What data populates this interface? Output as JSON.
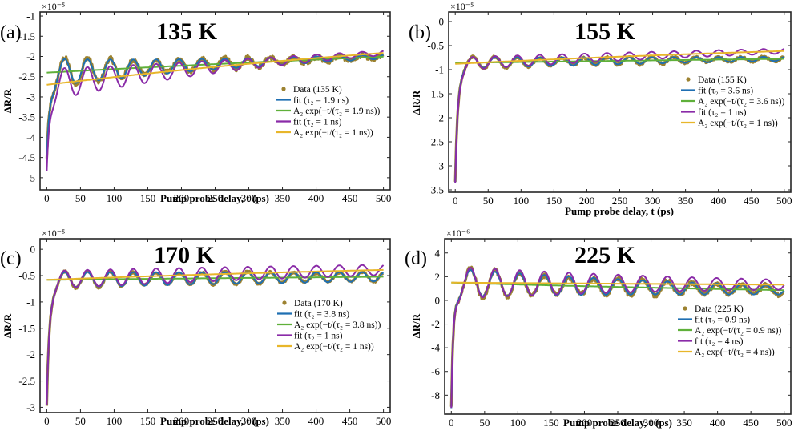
{
  "figure": {
    "xlabel": "Pump probe delay, t (ps)",
    "ylabel": "ΔR/R"
  },
  "colors": {
    "data": "#9C8230",
    "fit_fast": "#1F6FB2",
    "exp_fast": "#5FB03A",
    "fit_slow": "#8A2BA8",
    "exp_slow": "#E8B62A"
  },
  "chart_data": [
    {
      "type": "line",
      "panel_label": "(a)",
      "title": "135 K",
      "exponent_label": "×10⁻⁵",
      "xlim": [
        -10,
        510
      ],
      "ylim": [
        -5.3,
        -0.9
      ],
      "xticks": [
        0,
        50,
        100,
        150,
        200,
        250,
        300,
        350,
        400,
        450,
        500
      ],
      "xtick_labels": [
        "0",
        "50",
        "100",
        "150",
        "200",
        "250",
        "300",
        "350",
        "400",
        "450",
        "500"
      ],
      "yticks": [
        -5,
        -4.5,
        -4,
        -3.5,
        -3,
        -2.5,
        -2,
        -1.5,
        -1
      ],
      "ytick_labels": [
        "-5",
        "-4.5",
        "-4",
        "-3.5",
        "-3",
        "-2.5",
        "-2",
        "-1.5",
        "-1"
      ],
      "model": {
        "offset": -0.7,
        "amp_fast": -1.7,
        "tau_fast_ps": 1900,
        "amp_slow": -2.0,
        "tau_slow_ps": 1000,
        "osc_amp": 0.35,
        "osc_damp_ps": 260,
        "period_ps": 34,
        "phase": 1.4,
        "drop": -2.2,
        "rise_ps": 4,
        "noise": 0.06
      },
      "legend": [
        {
          "label": "Data (135 K)",
          "series": "data"
        },
        {
          "label": "fit (τ₂ = 1.9 ns)",
          "series": "fit_fast"
        },
        {
          "label": "A₂ exp(−t/(τ₂ = 1.9 ns))",
          "series": "exp_fast"
        },
        {
          "label": "fit (τ₂ = 1 ns)",
          "series": "fit_slow"
        },
        {
          "label": "A₂ exp(−t/(τ₂ = 1 ns))",
          "series": "exp_slow"
        }
      ]
    },
    {
      "type": "line",
      "panel_label": "(b)",
      "title": "155 K",
      "exponent_label": "×10⁻⁵",
      "xlim": [
        -10,
        510
      ],
      "ylim": [
        -3.55,
        0.2
      ],
      "xticks": [
        0,
        50,
        100,
        150,
        200,
        250,
        300,
        350,
        400,
        450,
        500
      ],
      "xtick_labels": [
        "0",
        "50",
        "100",
        "150",
        "200",
        "250",
        "300",
        "350",
        "400",
        "450",
        "500"
      ],
      "yticks": [
        -3.5,
        -3,
        -2.5,
        -2,
        -1.5,
        -1,
        -0.5,
        0
      ],
      "ytick_labels": [
        "-3.5",
        "-3",
        "-2.5",
        "-2",
        "-1.5",
        "-1",
        "-0.5",
        "0"
      ],
      "model": {
        "offset": -0.2,
        "amp_fast": -0.66,
        "tau_fast_ps": 3600,
        "amp_slow": -0.68,
        "tau_slow_ps": 1000,
        "osc_amp": 0.12,
        "osc_damp_ps": 500,
        "period_ps": 34,
        "phase": 1.4,
        "drop": -2.5,
        "rise_ps": 4,
        "noise": 0.025
      },
      "legend": [
        {
          "label": "Data (155 K)",
          "series": "data"
        },
        {
          "label": "fit (τ₂ = 3.6 ns)",
          "series": "fit_fast"
        },
        {
          "label": "A₂ exp(−t/(τ₂ = 3.6 ns))",
          "series": "exp_fast"
        },
        {
          "label": "fit (τ₂ = 1 ns)",
          "series": "fit_slow"
        },
        {
          "label": "A₂ exp(−t/(τ₂ = 1 ns))",
          "series": "exp_slow"
        }
      ]
    },
    {
      "type": "line",
      "panel_label": "(c)",
      "title": "170 K",
      "exponent_label": "×10⁻⁵",
      "xlim": [
        -10,
        510
      ],
      "ylim": [
        -3.1,
        0.2
      ],
      "xticks": [
        0,
        50,
        100,
        150,
        200,
        250,
        300,
        350,
        400,
        450,
        500
      ],
      "xtick_labels": [
        "0",
        "50",
        "100",
        "150",
        "200",
        "250",
        "300",
        "350",
        "400",
        "450",
        "500"
      ],
      "yticks": [
        -3,
        -2.5,
        -2,
        -1.5,
        -1,
        -0.5,
        0
      ],
      "ytick_labels": [
        "-3",
        "-2.5",
        "-2",
        "-1.5",
        "-1",
        "-0.5",
        "0"
      ],
      "model": {
        "offset": -0.1,
        "amp_fast": -0.48,
        "tau_fast_ps": 3800,
        "amp_slow": -0.48,
        "tau_slow_ps": 1000,
        "osc_amp": 0.15,
        "osc_damp_ps": 900,
        "period_ps": 34,
        "phase": 1.4,
        "drop": -2.4,
        "rise_ps": 4,
        "noise": 0.02
      },
      "legend": [
        {
          "label": "Data (170 K)",
          "series": "data"
        },
        {
          "label": "fit (τ₂ = 3.8 ns)",
          "series": "fit_fast"
        },
        {
          "label": "A₂ exp(−t/(τ₂ = 3.8 ns))",
          "series": "exp_fast"
        },
        {
          "label": "fit (τ₂ = 1 ns)",
          "series": "fit_slow"
        },
        {
          "label": "A₂ exp(−t/(τ₂ = 1 ns))",
          "series": "exp_slow"
        }
      ]
    },
    {
      "type": "line",
      "panel_label": "(d)",
      "title": "225 K",
      "exponent_label": "×10⁻⁶",
      "xlim": [
        -10,
        510
      ],
      "ylim": [
        -9.6,
        5.2
      ],
      "xticks": [
        0,
        50,
        100,
        150,
        200,
        250,
        300,
        350,
        400,
        450,
        500
      ],
      "xtick_labels": [
        "0",
        "50",
        "100",
        "150",
        "200",
        "250",
        "300",
        "350",
        "400",
        "450",
        "500"
      ],
      "yticks": [
        -8,
        -6,
        -4,
        -2,
        0,
        2,
        4
      ],
      "ytick_labels": [
        "-8",
        "-6",
        "-4",
        "-2",
        "0",
        "2",
        "4"
      ],
      "model": {
        "offset": 0.0,
        "amp_fast": 1.5,
        "tau_fast_ps": 900,
        "amp_slow": 1.5,
        "tau_slow_ps": 4000,
        "osc_amp": 1.2,
        "osc_damp_ps": 420,
        "period_ps": 37,
        "phase": 1.4,
        "drop": -10.8,
        "rise_ps": 3,
        "noise": 0.18
      },
      "legend": [
        {
          "label": "Data (225 K)",
          "series": "data"
        },
        {
          "label": "fit (τ₂ = 0.9 ns)",
          "series": "fit_fast"
        },
        {
          "label": "A₂ exp(−t/(τ₂ = 0.9 ns))",
          "series": "exp_fast"
        },
        {
          "label": "fit (τ₂ = 4 ns)",
          "series": "fit_slow"
        },
        {
          "label": "A₂ exp(−t/(τ₂ = 4 ns))",
          "series": "exp_slow"
        }
      ]
    }
  ]
}
